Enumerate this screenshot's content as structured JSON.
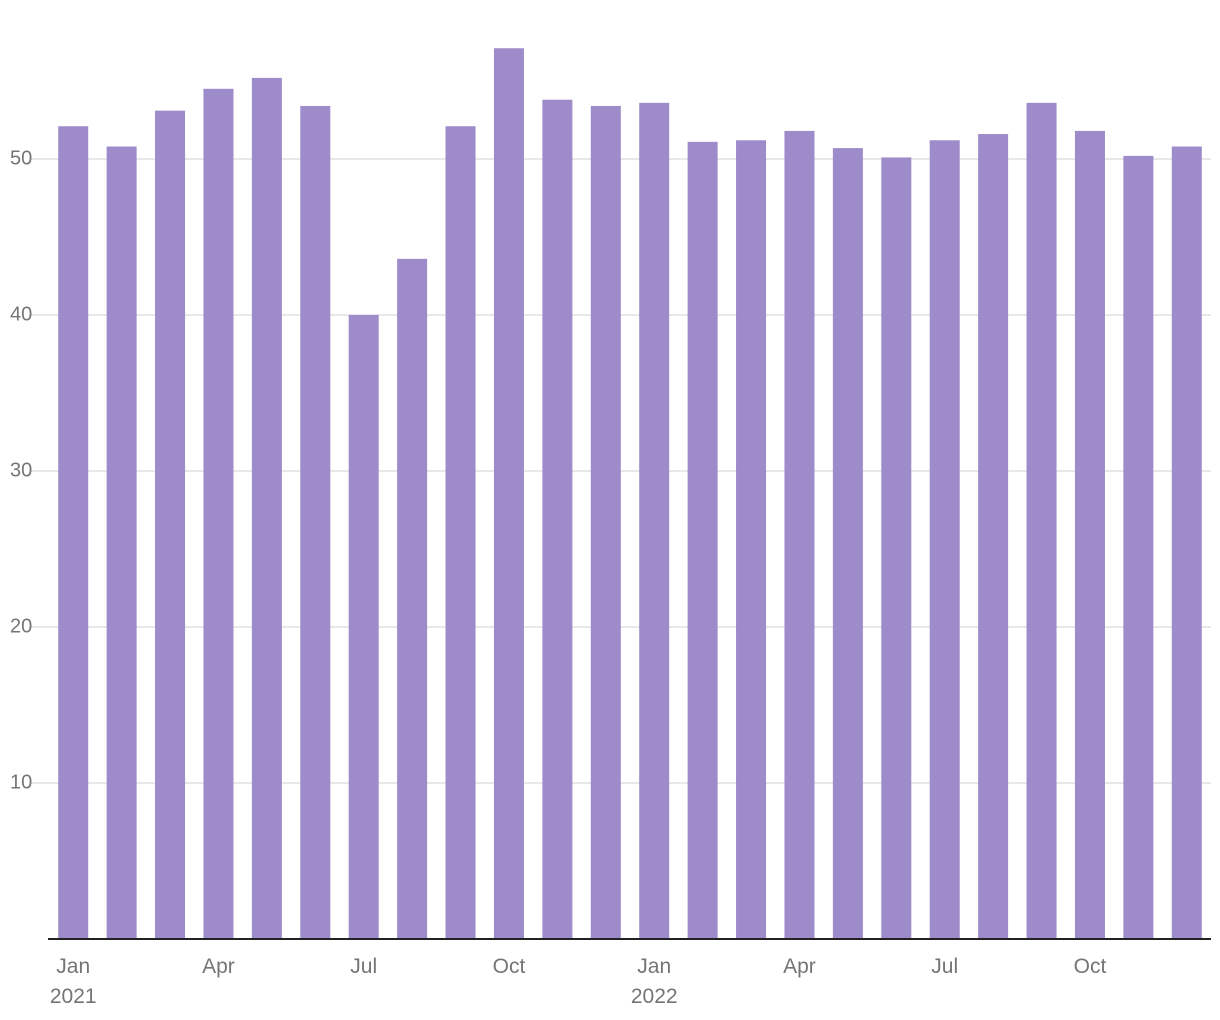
{
  "chart_data": {
    "type": "bar",
    "categories": [
      "Jan 2021",
      null,
      null,
      "Apr",
      null,
      null,
      "Jul",
      null,
      null,
      "Oct",
      null,
      null,
      "Jan 2022",
      null,
      null,
      "Apr",
      null,
      null,
      "Jul",
      null,
      null,
      "Oct",
      null,
      null
    ],
    "values": [
      52.1,
      50.8,
      53.1,
      54.5,
      55.2,
      53.4,
      40.0,
      43.6,
      52.1,
      57.1,
      53.8,
      53.4,
      53.6,
      51.1,
      51.2,
      51.8,
      50.7,
      50.1,
      51.2,
      51.6,
      53.6,
      51.8,
      50.2,
      50.8
    ],
    "color": "#9e8bca",
    "ylim": [
      0,
      60
    ],
    "yticks": [
      10,
      20,
      30,
      40,
      50
    ],
    "grid": true
  }
}
